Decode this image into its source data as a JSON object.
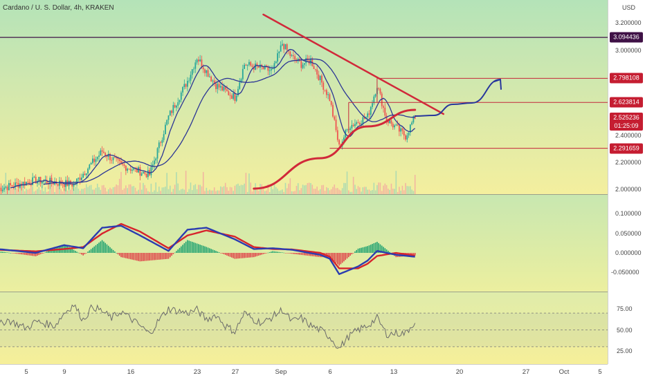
{
  "title": "Cardano / U. S. Dollar, 4h, KRAKEN",
  "currency": "USD",
  "colors": {
    "candle_up": "#26a69a",
    "candle_down": "#ef5350",
    "ma_fast": "#2b3595",
    "trend_red": "#d1293a",
    "projection": "#27369c",
    "hline": "#c4263a",
    "top_line": "#3f1146",
    "macd_line": "#2b3cb0",
    "signal_line": "#d7232c",
    "rsi_line": "#6b6b6b"
  },
  "x_axis": {
    "labels": [
      "5",
      "9",
      "16",
      "23",
      "27",
      "Sep",
      "6",
      "13",
      "20",
      "27",
      "Oct",
      "5"
    ]
  },
  "price_axis": {
    "ticks": [
      "3.200000",
      "3.000000",
      "2.400000",
      "2.200000",
      "2.000000"
    ]
  },
  "price_labels": [
    {
      "value": 3.094436,
      "text": "3.094436",
      "bg": "#3f1146"
    },
    {
      "value": 2.798108,
      "text": "2.798108",
      "bg": "#c51d31"
    },
    {
      "value": 2.623814,
      "text": "2.623814",
      "bg": "#c51d31"
    },
    {
      "value": 2.291659,
      "text": "2.291659",
      "bg": "#c51d31"
    }
  ],
  "current_price": {
    "value": 2.525236,
    "text": "2.525236",
    "countdown": "01:25:09"
  },
  "macd_axis": {
    "ticks": [
      "0.100000",
      "0.050000",
      "0.000000",
      "-0.050000"
    ]
  },
  "rsi_axis": {
    "ticks": [
      "75.00",
      "50.00",
      "25.00"
    ]
  },
  "chart_data": {
    "type": "candlestick",
    "timeframe": "4h",
    "symbol": "Cardano / U. S. Dollar",
    "exchange": "KRAKEN",
    "x_range": [
      "Aug 2",
      "Oct 5"
    ],
    "y_range": [
      2.0,
      3.2
    ],
    "price_path": [
      [
        "Aug 2",
        2.0
      ],
      [
        "Aug 6",
        2.06
      ],
      [
        "Aug 10",
        2.03
      ],
      [
        "Aug 13",
        2.27
      ],
      [
        "Aug 15",
        2.17
      ],
      [
        "Aug 18",
        2.1
      ],
      [
        "Aug 20",
        2.52
      ],
      [
        "Aug 22",
        2.78
      ],
      [
        "Aug 23",
        2.95
      ],
      [
        "Aug 25",
        2.75
      ],
      [
        "Aug 27",
        2.66
      ],
      [
        "Aug 28",
        2.9
      ],
      [
        "Aug 31",
        2.85
      ],
      [
        "Sep 1",
        3.05
      ],
      [
        "Sep 2",
        2.95
      ],
      [
        "Sep 3",
        2.9
      ],
      [
        "Sep 4",
        2.93
      ],
      [
        "Sep 6",
        2.65
      ],
      [
        "Sep 7",
        2.3
      ],
      [
        "Sep 8",
        2.45
      ],
      [
        "Sep 10",
        2.52
      ],
      [
        "Sep 11",
        2.75
      ],
      [
        "Sep 12",
        2.5
      ],
      [
        "Sep 14",
        2.38
      ],
      [
        "Sep 15",
        2.52
      ]
    ],
    "horizontal_levels": [
      3.094436,
      2.798108,
      2.623814,
      2.291659
    ],
    "current_price": 2.525236,
    "descending_trendline": [
      [
        "Aug 30",
        3.26
      ],
      [
        "Sep 18",
        2.54
      ]
    ],
    "support_curve": [
      [
        "Aug 29",
        2.0
      ],
      [
        "Sep 5",
        2.22
      ],
      [
        "Sep 10",
        2.45
      ],
      [
        "Sep 15",
        2.57
      ]
    ],
    "projection_path": [
      [
        "Sep 15",
        2.525
      ],
      [
        "Sep 17",
        2.53
      ],
      [
        "Sep 19",
        2.61
      ],
      [
        "Sep 21",
        2.62
      ],
      [
        "Sep 24",
        2.79
      ]
    ],
    "macd": {
      "y_range": [
        -0.075,
        0.12
      ],
      "macd_line": [
        [
          "Aug 2",
          0.01
        ],
        [
          "Aug 6",
          0.0
        ],
        [
          "Aug 9",
          0.02
        ],
        [
          "Aug 11",
          0.012
        ],
        [
          "Aug 13",
          0.065
        ],
        [
          "Aug 15",
          0.07
        ],
        [
          "Aug 17",
          0.045
        ],
        [
          "Aug 20",
          0.005
        ],
        [
          "Aug 22",
          0.06
        ],
        [
          "Aug 24",
          0.065
        ],
        [
          "Aug 27",
          0.035
        ],
        [
          "Aug 29",
          0.01
        ],
        [
          "Aug 31",
          0.012
        ],
        [
          "Sep 2",
          0.008
        ],
        [
          "Sep 5",
          -0.005
        ],
        [
          "Sep 6",
          -0.015
        ],
        [
          "Sep 7",
          -0.055
        ],
        [
          "Sep 9",
          -0.035
        ],
        [
          "Sep 10",
          -0.02
        ],
        [
          "Sep 11",
          0.005
        ],
        [
          "Sep 13",
          -0.005
        ],
        [
          "Sep 15",
          -0.01
        ]
      ],
      "signal_line": [
        [
          "Aug 2",
          0.008
        ],
        [
          "Aug 6",
          0.004
        ],
        [
          "Aug 9",
          0.01
        ],
        [
          "Aug 11",
          0.015
        ],
        [
          "Aug 13",
          0.05
        ],
        [
          "Aug 15",
          0.075
        ],
        [
          "Aug 17",
          0.055
        ],
        [
          "Aug 20",
          0.012
        ],
        [
          "Aug 22",
          0.045
        ],
        [
          "Aug 24",
          0.058
        ],
        [
          "Aug 27",
          0.042
        ],
        [
          "Aug 29",
          0.015
        ],
        [
          "Aug 31",
          0.01
        ],
        [
          "Sep 2",
          0.009
        ],
        [
          "Sep 5",
          0.0
        ],
        [
          "Sep 6",
          -0.01
        ],
        [
          "Sep 7",
          -0.04
        ],
        [
          "Sep 9",
          -0.04
        ],
        [
          "Sep 10",
          -0.028
        ],
        [
          "Sep 11",
          -0.008
        ],
        [
          "Sep 13",
          0.0
        ],
        [
          "Sep 15",
          -0.007
        ]
      ]
    },
    "rsi": {
      "y_range": [
        15,
        90
      ],
      "bands": [
        70,
        50,
        30
      ],
      "values": [
        [
          "Aug 2",
          55
        ],
        [
          "Aug 3",
          62
        ],
        [
          "Aug 5",
          52
        ],
        [
          "Aug 6",
          60
        ],
        [
          "Aug 8",
          55
        ],
        [
          "Aug 9",
          70
        ],
        [
          "Aug 10",
          80
        ],
        [
          "Aug 11",
          62
        ],
        [
          "Aug 12",
          78
        ],
        [
          "Aug 13",
          72
        ],
        [
          "Aug 14",
          64
        ],
        [
          "Aug 15",
          72
        ],
        [
          "Aug 17",
          55
        ],
        [
          "Aug 18",
          45
        ],
        [
          "Aug 19",
          62
        ],
        [
          "Aug 20",
          75
        ],
        [
          "Aug 22",
          70
        ],
        [
          "Aug 23",
          74
        ],
        [
          "Aug 24",
          62
        ],
        [
          "Aug 25",
          68
        ],
        [
          "Aug 26",
          55
        ],
        [
          "Aug 27",
          48
        ],
        [
          "Aug 28",
          70
        ],
        [
          "Aug 29",
          62
        ],
        [
          "Aug 30",
          58
        ],
        [
          "Aug 31",
          66
        ],
        [
          "Sep 1",
          74
        ],
        [
          "Sep 2",
          60
        ],
        [
          "Sep 3",
          64
        ],
        [
          "Sep 4",
          55
        ],
        [
          "Sep 5",
          50
        ],
        [
          "Sep 6",
          42
        ],
        [
          "Sep 7",
          28
        ],
        [
          "Sep 8",
          42
        ],
        [
          "Sep 9",
          50
        ],
        [
          "Sep 10",
          55
        ],
        [
          "Sep 11",
          64
        ],
        [
          "Sep 12",
          45
        ],
        [
          "Sep 13",
          46
        ],
        [
          "Sep 14",
          46
        ],
        [
          "Sep 15",
          60
        ]
      ]
    }
  }
}
